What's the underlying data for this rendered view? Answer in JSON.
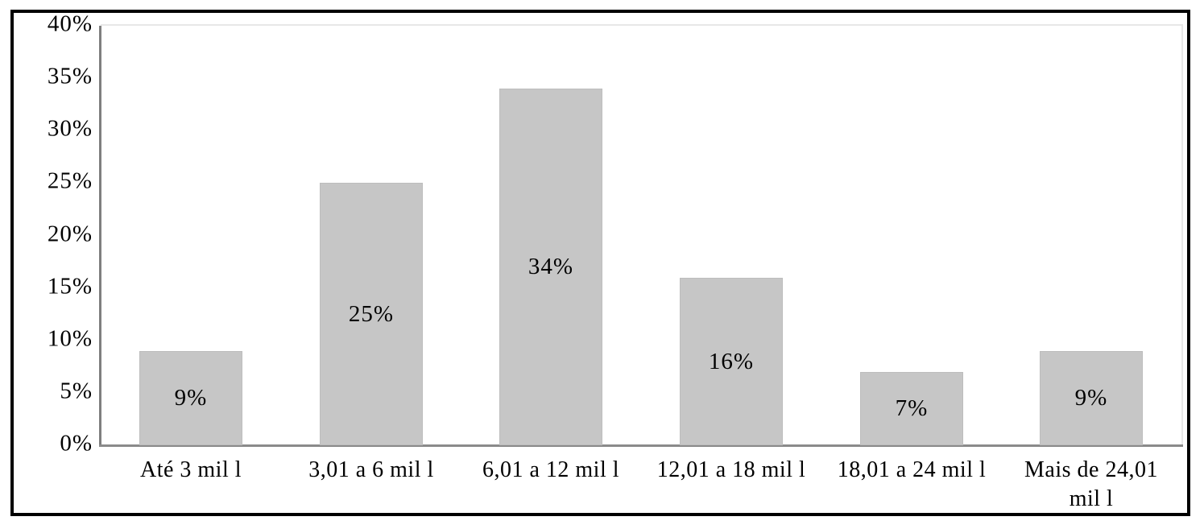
{
  "chart_data": {
    "type": "bar",
    "title": "",
    "xlabel": "",
    "ylabel": "",
    "categories": [
      "Até 3 mil l",
      "3,01 a 6 mil l",
      "6,01 a 12 mil l",
      "12,01 a 18 mil l",
      "18,01 a 24 mil l",
      "Mais de 24,01 mil l"
    ],
    "x_tick_display": [
      "Até 3 mil l",
      "3,01 a 6 mil l",
      "6,01 a 12 mil l",
      "12,01 a 18 mil l",
      "18,01 a 24 mil l",
      "Mais de 24,01\nmil l"
    ],
    "values": [
      9,
      25,
      34,
      16,
      7,
      9
    ],
    "data_labels": [
      "9%",
      "25%",
      "34%",
      "16%",
      "7%",
      "9%"
    ],
    "ylim": [
      0,
      40
    ],
    "y_tick_step": 5,
    "y_tick_labels": [
      "40%",
      "35%",
      "30%",
      "25%",
      "20%",
      "15%",
      "10%",
      "5%",
      "0%"
    ],
    "grid": false,
    "legend": false,
    "colors": {
      "bar_fill": "#c6c6c6",
      "bar_edge": "#bdbdbd",
      "y_axis_line": "#7f7f7f",
      "x_axis_line": "#8a8a8a",
      "plot_border": "#e7e7e7",
      "frame_border": "#000000",
      "text": "#000000",
      "background": "#ffffff"
    }
  }
}
